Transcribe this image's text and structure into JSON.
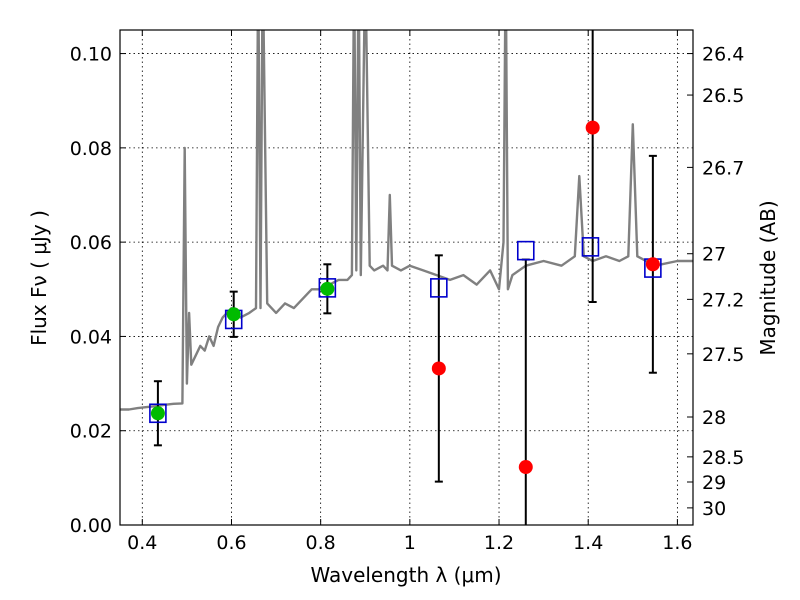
{
  "chart_data": {
    "type": "scatter",
    "xlabel": "Wavelength  λ (μm)",
    "ylabel": "Flux  Fν  ( μJy )",
    "ylabel_right": "Magnitude (AB)",
    "xlim": [
      0.35,
      1.635
    ],
    "ylim": [
      0.0,
      0.105
    ],
    "grid": true,
    "x_ticks": [
      {
        "value": 0.4,
        "label": "0.4"
      },
      {
        "value": 0.6,
        "label": "0.6"
      },
      {
        "value": 0.8,
        "label": "0.8"
      },
      {
        "value": 1.0,
        "label": "1"
      },
      {
        "value": 1.2,
        "label": "1.2"
      },
      {
        "value": 1.4,
        "label": "1.4"
      },
      {
        "value": 1.6,
        "label": "1.6"
      }
    ],
    "y_ticks": [
      {
        "value": 0.0,
        "label": "0.00"
      },
      {
        "value": 0.02,
        "label": "0.02"
      },
      {
        "value": 0.04,
        "label": "0.04"
      },
      {
        "value": 0.06,
        "label": "0.06"
      },
      {
        "value": 0.08,
        "label": "0.08"
      },
      {
        "value": 0.1,
        "label": "0.10"
      }
    ],
    "mag_ticks": [
      {
        "value": 26.4,
        "label": "26.4"
      },
      {
        "value": 26.5,
        "label": "26.5"
      },
      {
        "value": 26.7,
        "label": "26.7"
      },
      {
        "value": 27.0,
        "label": "27"
      },
      {
        "value": 27.2,
        "label": "27.2"
      },
      {
        "value": 27.5,
        "label": "27.5"
      },
      {
        "value": 28.0,
        "label": "28"
      },
      {
        "value": 28.5,
        "label": "28.5"
      },
      {
        "value": 29.0,
        "label": "29"
      },
      {
        "value": 30.0,
        "label": "30"
      }
    ],
    "colors": {
      "sed": "#808080",
      "model_photometry": "#0000cc",
      "observed_optical": "#00bb00",
      "observed_nir": "#ff0000",
      "error_bar": "#000000"
    },
    "series": [
      {
        "type": "line",
        "x": [
          0.35,
          0.37,
          0.39,
          0.41,
          0.43,
          0.45,
          0.47,
          0.49,
          0.495,
          0.5,
          0.505,
          0.51,
          0.52,
          0.53,
          0.54,
          0.55,
          0.56,
          0.57,
          0.58,
          0.6,
          0.62,
          0.64,
          0.655,
          0.66,
          0.665,
          0.67,
          0.68,
          0.7,
          0.72,
          0.74,
          0.76,
          0.78,
          0.8,
          0.82,
          0.84,
          0.86,
          0.87,
          0.875,
          0.88,
          0.885,
          0.89,
          0.9,
          0.91,
          0.92,
          0.94,
          0.95,
          0.955,
          0.96,
          0.98,
          1.0,
          1.03,
          1.06,
          1.09,
          1.12,
          1.15,
          1.18,
          1.2,
          1.21,
          1.215,
          1.22,
          1.23,
          1.26,
          1.3,
          1.34,
          1.37,
          1.38,
          1.39,
          1.41,
          1.44,
          1.47,
          1.49,
          1.5,
          1.51,
          1.55,
          1.6,
          1.635
        ],
        "y": [
          0.0245,
          0.0245,
          0.0248,
          0.025,
          0.0252,
          0.0255,
          0.0257,
          0.0258,
          0.08,
          0.03,
          0.045,
          0.034,
          0.036,
          0.038,
          0.037,
          0.04,
          0.038,
          0.042,
          0.044,
          0.046,
          0.044,
          0.045,
          0.046,
          0.12,
          0.046,
          0.12,
          0.047,
          0.045,
          0.047,
          0.046,
          0.048,
          0.05,
          0.05,
          0.051,
          0.052,
          0.052,
          0.053,
          0.12,
          0.054,
          0.12,
          0.053,
          0.12,
          0.055,
          0.054,
          0.055,
          0.054,
          0.07,
          0.055,
          0.054,
          0.055,
          0.054,
          0.053,
          0.052,
          0.053,
          0.051,
          0.054,
          0.05,
          0.06,
          0.12,
          0.05,
          0.053,
          0.055,
          0.056,
          0.055,
          0.057,
          0.074,
          0.057,
          0.056,
          0.057,
          0.056,
          0.057,
          0.085,
          0.057,
          0.055,
          0.056,
          0.056
        ]
      },
      {
        "type": "scatter",
        "marker": "square",
        "x": [
          0.435,
          0.605,
          0.815,
          1.065,
          1.26,
          1.405,
          1.545
        ],
        "y": [
          0.0237,
          0.0436,
          0.0503,
          0.0503,
          0.0582,
          0.059,
          0.0545
        ]
      },
      {
        "type": "scatter",
        "marker": "circle",
        "x": [
          0.435,
          0.605,
          0.815
        ],
        "y": [
          0.0237,
          0.0447,
          0.0501
        ],
        "yerr": [
          0.0068,
          0.0048,
          0.0052
        ]
      },
      {
        "type": "scatter",
        "marker": "circle",
        "x": [
          1.065,
          1.26,
          1.41,
          1.545
        ],
        "y": [
          0.0332,
          0.0123,
          0.0843,
          0.0553
        ],
        "yerr": [
          0.024,
          0.044,
          0.037,
          0.023
        ]
      }
    ]
  }
}
